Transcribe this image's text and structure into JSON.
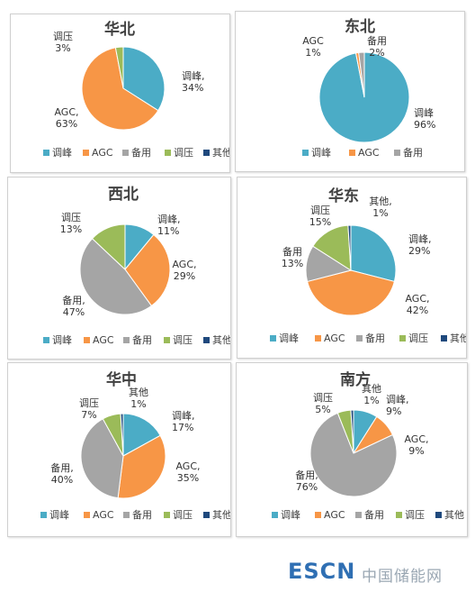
{
  "legend_labels": [
    "调峰",
    "AGC",
    "备用",
    "调压",
    "其他"
  ],
  "colors": {
    "调峰": "#4bacc6",
    "AGC": "#f79646",
    "备用": "#a5a5a5",
    "调压": "#9bbb59",
    "其他": "#1f497d"
  },
  "watermark": {
    "brand": "ESCN",
    "site": "中国储能网"
  },
  "chart_data": [
    {
      "type": "pie",
      "title": "华北",
      "categories": [
        "调峰",
        "AGC",
        "调压"
      ],
      "values": [
        34,
        63,
        3
      ],
      "data_labels": [
        "调峰,\n34%",
        "AGC,\n63%",
        "调压\n3%"
      ],
      "legend": [
        "调峰",
        "AGC",
        "备用",
        "调压",
        "其他"
      ]
    },
    {
      "type": "pie",
      "title": "东北",
      "categories": [
        "调峰",
        "AGC",
        "备用"
      ],
      "values": [
        96,
        1,
        2
      ],
      "data_labels": [
        "调峰\n96%",
        "AGC\n1%",
        "备用\n2%"
      ],
      "legend": [
        "调峰",
        "AGC",
        "备用"
      ]
    },
    {
      "type": "pie",
      "title": "西北",
      "categories": [
        "调峰",
        "AGC",
        "备用",
        "调压"
      ],
      "values": [
        11,
        29,
        47,
        13
      ],
      "data_labels": [
        "调峰,\n11%",
        "AGC,\n29%",
        "备用,\n47%",
        "调压\n13%"
      ],
      "legend": [
        "调峰",
        "AGC",
        "备用",
        "调压",
        "其他"
      ]
    },
    {
      "type": "pie",
      "title": "华东",
      "categories": [
        "调峰",
        "AGC",
        "备用",
        "调压",
        "其他"
      ],
      "values": [
        29,
        42,
        13,
        15,
        1
      ],
      "data_labels": [
        "调峰,\n29%",
        "AGC,\n42%",
        "备用\n13%",
        "调压\n15%",
        "其他,\n1%"
      ],
      "legend": [
        "调峰",
        "AGC",
        "备用",
        "调压",
        "其他"
      ]
    },
    {
      "type": "pie",
      "title": "华中",
      "categories": [
        "调峰",
        "AGC",
        "备用",
        "调压",
        "其他"
      ],
      "values": [
        17,
        35,
        40,
        7,
        1
      ],
      "data_labels": [
        "调峰,\n17%",
        "AGC,\n35%",
        "备用,\n40%",
        "调压\n7%",
        "其他\n1%"
      ],
      "legend": [
        "调峰",
        "AGC",
        "备用",
        "调压",
        "其他"
      ]
    },
    {
      "type": "pie",
      "title": "南方",
      "categories": [
        "调峰",
        "AGC",
        "备用",
        "调压",
        "其他"
      ],
      "values": [
        9,
        9,
        76,
        5,
        1
      ],
      "data_labels": [
        "调峰,\n9%",
        "AGC,\n9%",
        "备用,\n76%",
        "调压\n5%",
        "其他\n1%"
      ],
      "legend": [
        "调峰",
        "AGC",
        "备用",
        "调压",
        "其他"
      ]
    }
  ]
}
